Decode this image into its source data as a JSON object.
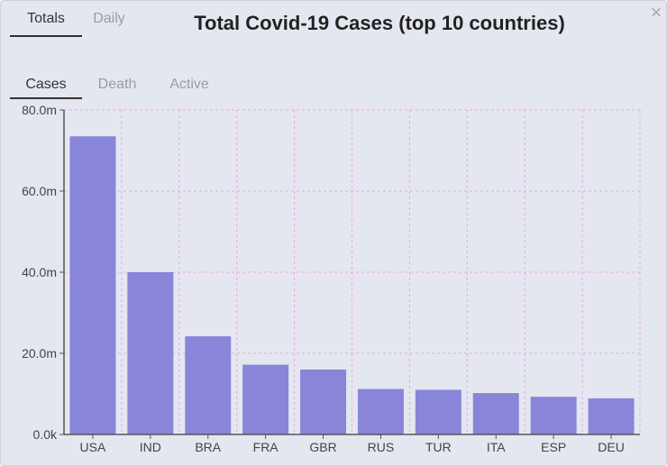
{
  "tabs": [
    {
      "label": "Totals",
      "active": true
    },
    {
      "label": "Daily",
      "active": false
    }
  ],
  "title": "Total Covid-19 Cases (top 10 countries)",
  "close_icon": "×",
  "subtabs": [
    {
      "label": "Cases",
      "active": true
    },
    {
      "label": "Death",
      "active": false
    },
    {
      "label": "Active",
      "active": false
    }
  ],
  "colors": {
    "bar": "#8985d9",
    "grid": "#e7a8e0",
    "axis": "#555555"
  },
  "chart_data": {
    "type": "bar",
    "categories": [
      "USA",
      "IND",
      "BRA",
      "FRA",
      "GBR",
      "RUS",
      "TUR",
      "ITA",
      "ESP",
      "DEU"
    ],
    "values": [
      73.5,
      40.0,
      24.2,
      17.2,
      16.0,
      11.2,
      11.0,
      10.2,
      9.3,
      8.9
    ],
    "y_ticks": [
      "0.0k",
      "20.0m",
      "40.0m",
      "60.0m",
      "80.0m"
    ],
    "ylim": [
      0,
      80
    ],
    "grid": true
  }
}
